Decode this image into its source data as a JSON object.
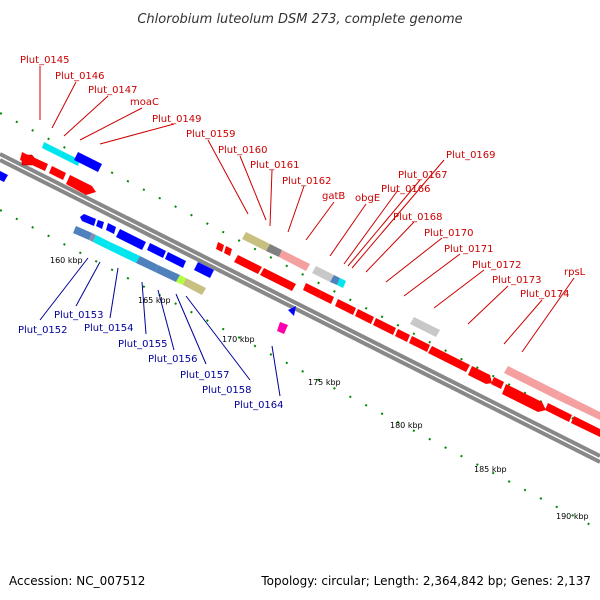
{
  "title": "Chlorobium luteolum DSM 273, complete genome",
  "accession": "Accession: NC_007512",
  "summary": "Topology: circular; Length: 2,364,842 bp; Genes: 2,137",
  "kbp_labels": [
    "160 kbp",
    "165 kbp",
    "170 kbp",
    "175 kbp",
    "180 kbp",
    "185 kbp",
    "190 kbp"
  ],
  "top_labels": [
    "Plut_0145",
    "Plut_0146",
    "Plut_0147",
    "moaC",
    "Plut_0149",
    "Plut_0159",
    "Plut_0160",
    "Plut_0161",
    "Plut_0162",
    "gatB",
    "obgE",
    "Plut_0166",
    "Plut_0167",
    "Plut_0169",
    "Plut_0168",
    "Plut_0170",
    "Plut_0171",
    "Plut_0172",
    "Plut_0173",
    "Plut_0174",
    "rpsL"
  ],
  "bottom_labels": [
    "Plut_0152",
    "Plut_0153",
    "Plut_0154",
    "Plut_0155",
    "Plut_0156",
    "Plut_0157",
    "Plut_0158",
    "Plut_0164"
  ],
  "colors": {
    "forward_gene": "#ff0000",
    "reverse_gene": "#0000ff",
    "backbone": "#888888",
    "tick": "#008800",
    "cds_cyan": "#00e5ee",
    "cds_steel": "#4f81bd",
    "cds_khaki": "#c8c080",
    "cds_pink": "#f4a0a0",
    "cds_gray": "#c8c8c8",
    "cds_magenta": "#ff00aa"
  }
}
